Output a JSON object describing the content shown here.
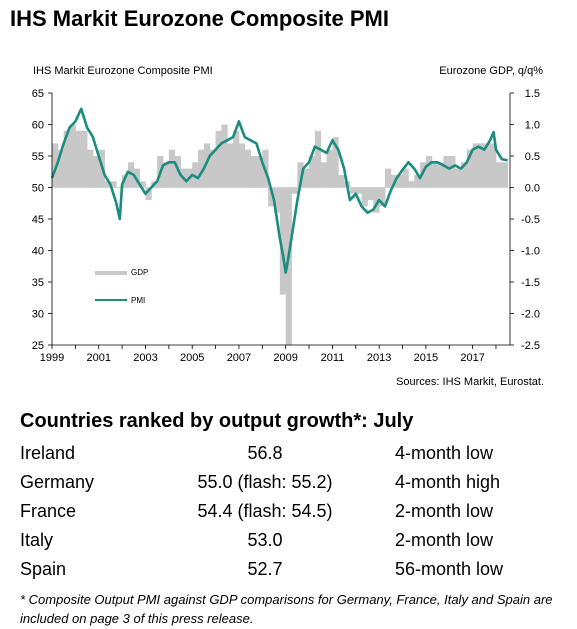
{
  "title": "IHS Markit Eurozone Composite PMI",
  "chart_data": {
    "type": "bar+line",
    "left_axis_label": "IHS Markit Eurozone Composite PMI",
    "right_axis_label": "Eurozone GDP, q/q%",
    "left_ylim": [
      25,
      65
    ],
    "left_ticks": [
      25,
      30,
      35,
      40,
      45,
      50,
      55,
      60,
      65
    ],
    "right_ylim": [
      -2.5,
      1.5
    ],
    "right_ticks": [
      "-2.5",
      "-2.0",
      "-1.5",
      "-1.0",
      "-0.5",
      "0.0",
      "0.5",
      "1.0",
      "1.5"
    ],
    "x_ticks": [
      "1999",
      "2001",
      "2003",
      "2005",
      "2007",
      "2009",
      "2011",
      "2013",
      "2015",
      "2017"
    ],
    "xlim": [
      1999.0,
      2018.6
    ],
    "legend": [
      {
        "name": "GDP",
        "color": "#c8c8c8"
      },
      {
        "name": "PMI",
        "color": "#1a8c80"
      }
    ],
    "gdp": {
      "x": [
        1999.0,
        1999.25,
        1999.5,
        1999.75,
        2000.0,
        2000.25,
        2000.5,
        2000.75,
        2001.0,
        2001.25,
        2001.5,
        2001.75,
        2002.0,
        2002.25,
        2002.5,
        2002.75,
        2003.0,
        2003.25,
        2003.5,
        2003.75,
        2004.0,
        2004.25,
        2004.5,
        2004.75,
        2005.0,
        2005.25,
        2005.5,
        2005.75,
        2006.0,
        2006.25,
        2006.5,
        2006.75,
        2007.0,
        2007.25,
        2007.5,
        2007.75,
        2008.0,
        2008.25,
        2008.5,
        2008.75,
        2009.0,
        2009.25,
        2009.5,
        2009.75,
        2010.0,
        2010.25,
        2010.5,
        2010.75,
        2011.0,
        2011.25,
        2011.5,
        2011.75,
        2012.0,
        2012.25,
        2012.5,
        2012.75,
        2013.0,
        2013.25,
        2013.5,
        2013.75,
        2014.0,
        2014.25,
        2014.5,
        2014.75,
        2015.0,
        2015.25,
        2015.5,
        2015.75,
        2016.0,
        2016.25,
        2016.5,
        2016.75,
        2017.0,
        2017.25,
        2017.5,
        2017.75,
        2018.0,
        2018.25
      ],
      "values": [
        0.7,
        0.6,
        0.9,
        1.0,
        0.9,
        0.9,
        0.6,
        0.5,
        0.6,
        0.1,
        0.1,
        0.0,
        0.2,
        0.4,
        0.3,
        0.1,
        -0.2,
        0.1,
        0.5,
        0.4,
        0.6,
        0.5,
        0.3,
        0.3,
        0.4,
        0.6,
        0.7,
        0.6,
        0.9,
        1.0,
        0.7,
        0.9,
        0.7,
        0.6,
        0.5,
        0.5,
        0.6,
        -0.3,
        -0.4,
        -1.7,
        -2.5,
        -0.1,
        0.4,
        0.3,
        0.5,
        0.9,
        0.4,
        0.6,
        0.8,
        0.2,
        0.1,
        -0.1,
        -0.1,
        -0.3,
        -0.2,
        -0.4,
        -0.3,
        0.3,
        0.2,
        0.2,
        0.3,
        0.1,
        0.2,
        0.4,
        0.5,
        0.4,
        0.4,
        0.5,
        0.5,
        0.3,
        0.4,
        0.6,
        0.7,
        0.7,
        0.7,
        0.7,
        0.4,
        0.4
      ]
    },
    "pmi": {
      "x": [
        1999.0,
        1999.25,
        1999.5,
        1999.75,
        2000.0,
        2000.25,
        2000.5,
        2000.75,
        2001.0,
        2001.25,
        2001.5,
        2001.75,
        2001.9,
        2002.0,
        2002.25,
        2002.5,
        2002.75,
        2003.0,
        2003.25,
        2003.5,
        2003.75,
        2004.0,
        2004.25,
        2004.5,
        2004.75,
        2005.0,
        2005.25,
        2005.5,
        2005.75,
        2006.0,
        2006.25,
        2006.5,
        2006.75,
        2007.0,
        2007.25,
        2007.5,
        2007.75,
        2008.0,
        2008.25,
        2008.5,
        2008.75,
        2008.9,
        2009.0,
        2009.1,
        2009.25,
        2009.5,
        2009.75,
        2010.0,
        2010.25,
        2010.5,
        2010.75,
        2011.0,
        2011.25,
        2011.5,
        2011.75,
        2012.0,
        2012.25,
        2012.5,
        2012.75,
        2013.0,
        2013.25,
        2013.5,
        2013.75,
        2014.0,
        2014.25,
        2014.5,
        2014.75,
        2015.0,
        2015.25,
        2015.5,
        2015.75,
        2016.0,
        2016.25,
        2016.5,
        2016.75,
        2017.0,
        2017.25,
        2017.5,
        2017.75,
        2017.9,
        2018.0,
        2018.25,
        2018.5
      ],
      "values": [
        51.5,
        54.0,
        57.0,
        59.5,
        60.5,
        62.5,
        59.5,
        58.0,
        55.0,
        52.0,
        50.5,
        47.5,
        45.0,
        50.5,
        52.5,
        52.0,
        50.5,
        49.0,
        50.0,
        51.0,
        53.5,
        54.0,
        54.0,
        52.0,
        51.0,
        52.0,
        51.5,
        53.0,
        55.0,
        56.0,
        57.0,
        57.5,
        58.0,
        60.5,
        58.0,
        57.5,
        57.0,
        54.0,
        51.5,
        48.0,
        42.0,
        39.0,
        36.5,
        38.5,
        42.0,
        48.0,
        53.0,
        54.0,
        56.5,
        56.0,
        55.5,
        57.5,
        56.0,
        53.0,
        48.0,
        49.0,
        47.0,
        46.0,
        46.5,
        48.0,
        47.0,
        49.5,
        51.5,
        52.8,
        54.0,
        53.0,
        51.5,
        53.3,
        54.0,
        54.0,
        53.5,
        53.0,
        53.5,
        53.0,
        54.0,
        56.0,
        56.5,
        56.0,
        57.5,
        58.8,
        56.0,
        54.5,
        54.3
      ]
    }
  },
  "source": "Sources: IHS Markit, Eurostat.",
  "ranking": {
    "title": "Countries ranked by output growth*: July",
    "rows": [
      {
        "country": "Ireland",
        "value": "56.8",
        "note": "4-month low"
      },
      {
        "country": "Germany",
        "value": "55.0 (flash: 55.2)",
        "note": "4-month high"
      },
      {
        "country": "France",
        "value": "54.4 (flash: 54.5)",
        "note": "2-month low"
      },
      {
        "country": "Italy",
        "value": "53.0",
        "note": "2-month low"
      },
      {
        "country": "Spain",
        "value": "52.7",
        "note": "56-month low"
      }
    ]
  },
  "footnote": "* Composite Output PMI against GDP comparisons for Germany, France, Italy and Spain are included on page 3 of this press release."
}
